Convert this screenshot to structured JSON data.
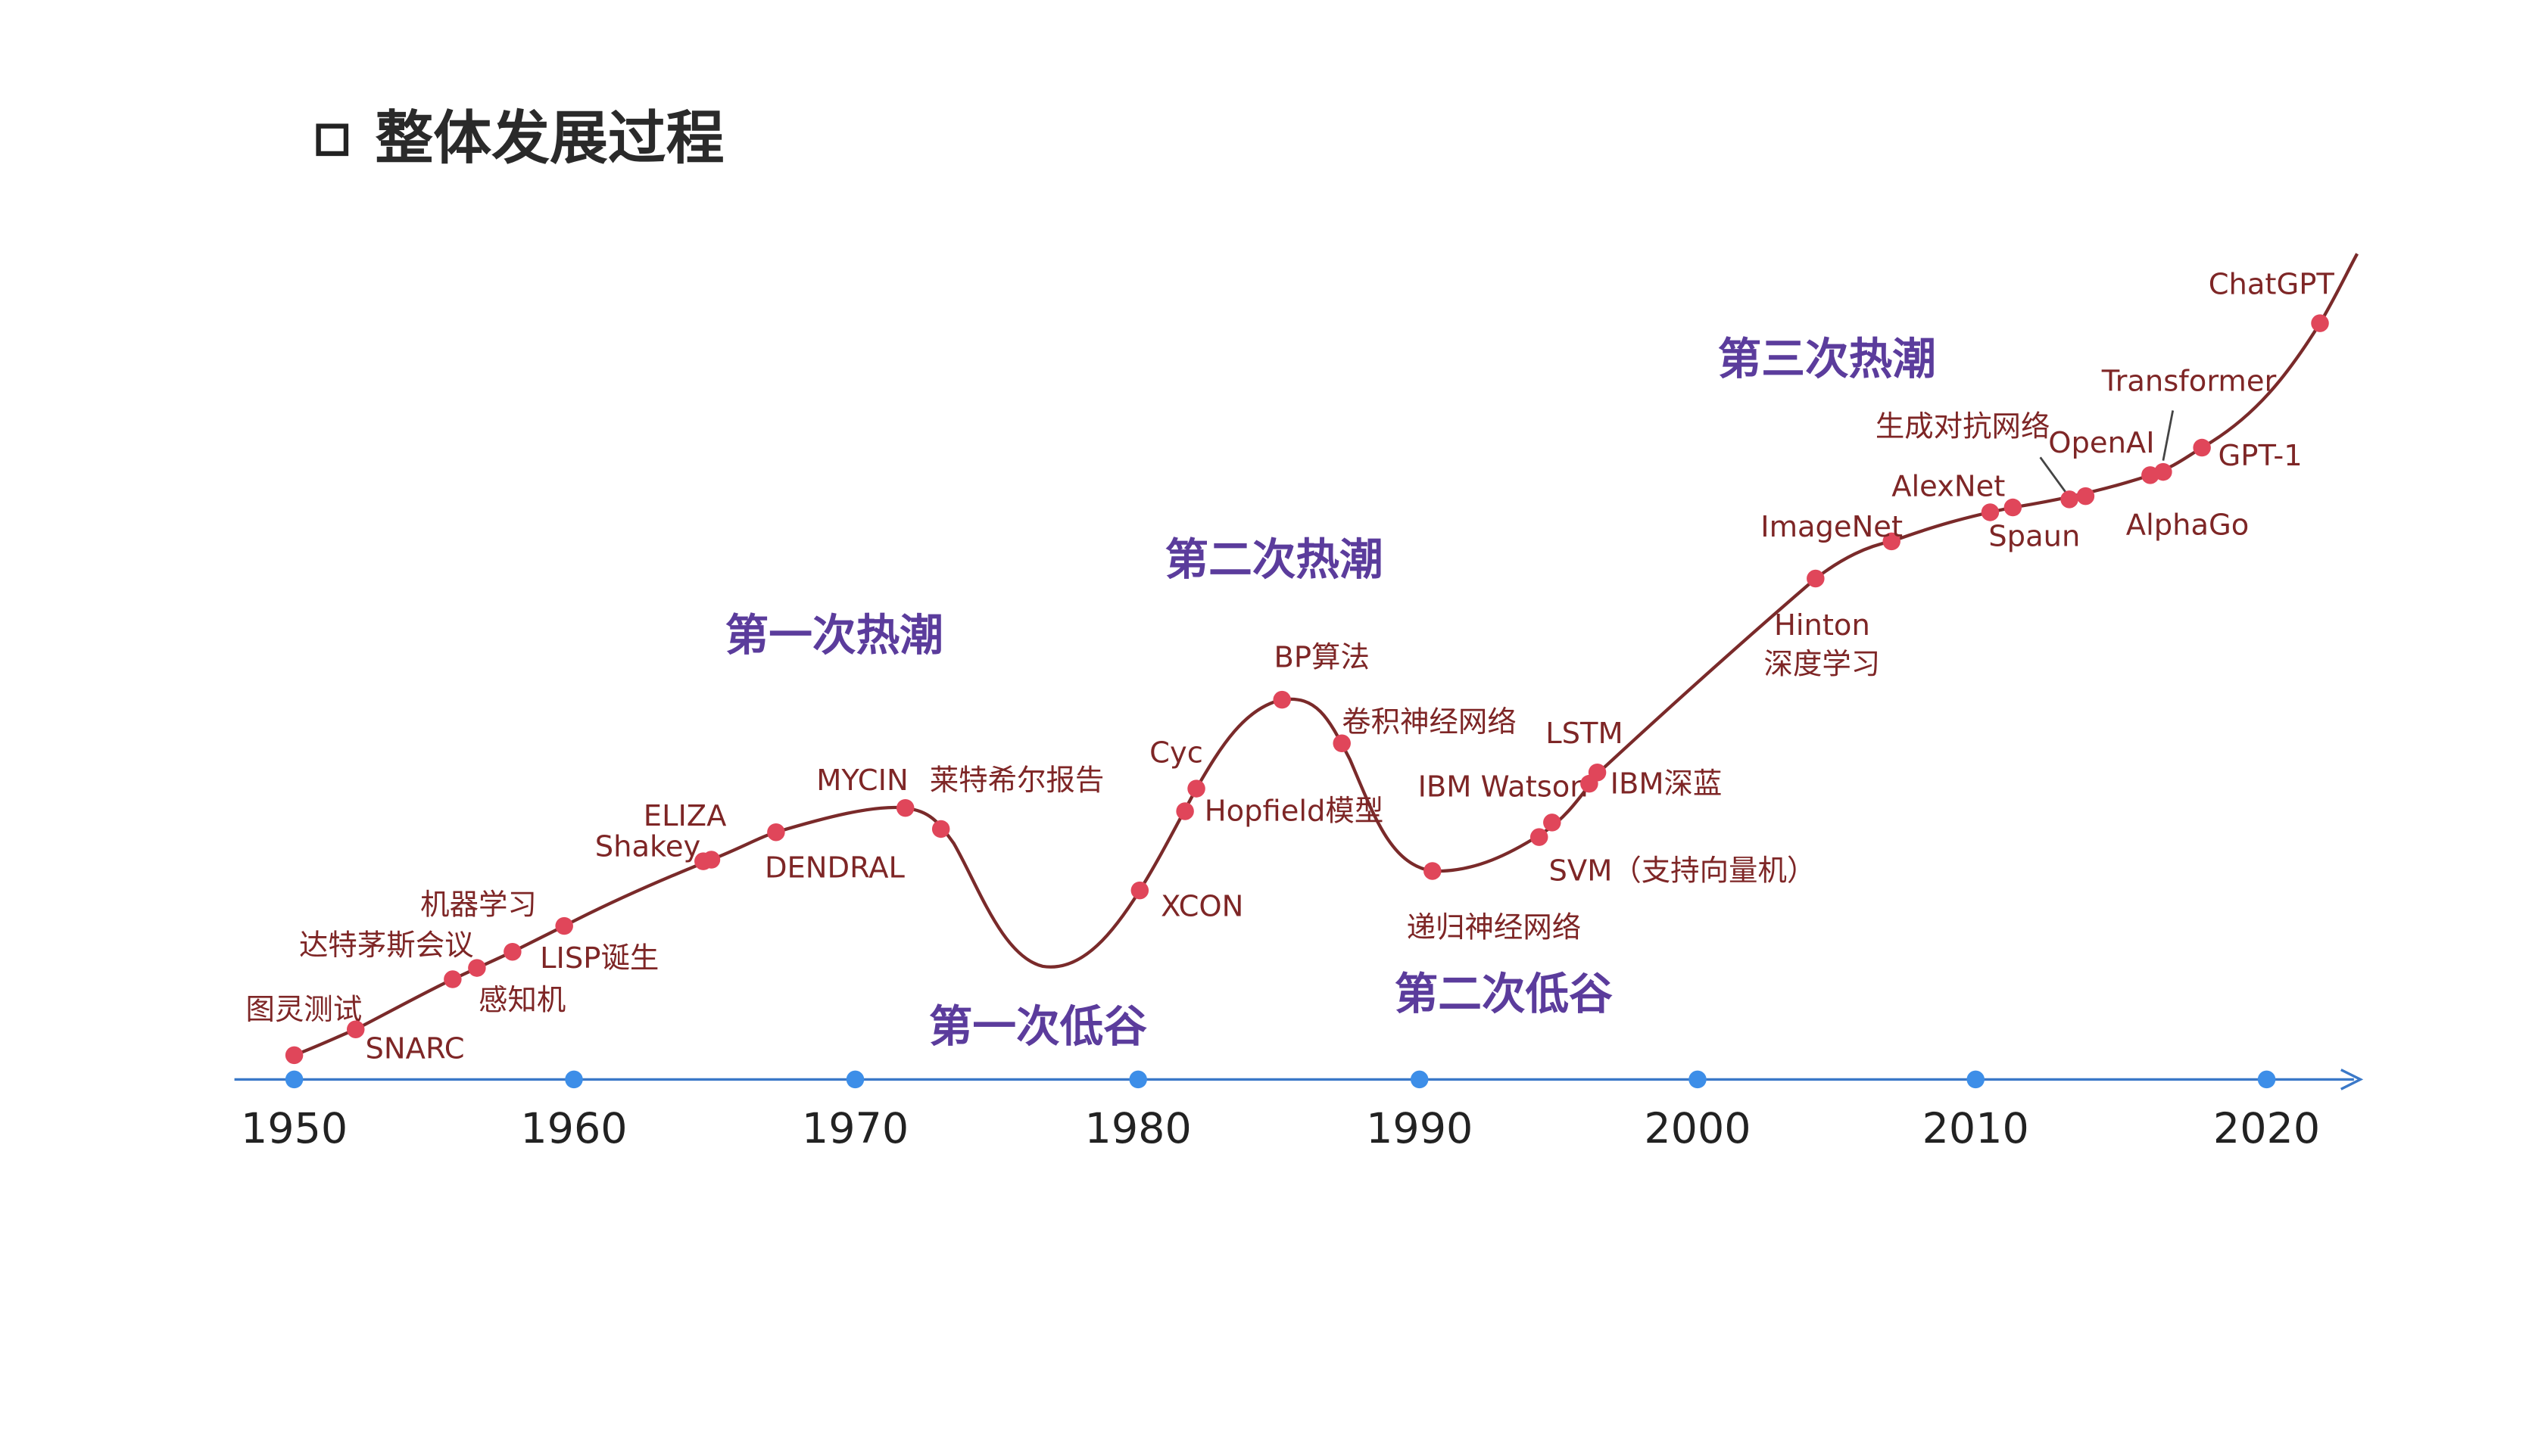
{
  "header": {
    "title": "整体发展过程"
  },
  "timeline": {
    "years": [
      "1950",
      "1960",
      "1970",
      "1980",
      "1990",
      "2000",
      "2010",
      "2020"
    ],
    "events": [
      {
        "label": "图灵测试"
      },
      {
        "label": "SNARC"
      },
      {
        "label": "达特茅斯会议"
      },
      {
        "label": "机器学习"
      },
      {
        "label": "感知机"
      },
      {
        "label": "LISP诞生"
      },
      {
        "label": "ELIZA"
      },
      {
        "label": "Shakey"
      },
      {
        "label": "DENDRAL"
      },
      {
        "label": "MYCIN"
      },
      {
        "label": "莱特希尔报告"
      },
      {
        "label": "XCON"
      },
      {
        "label": "Hopfield模型"
      },
      {
        "label": "Cyc"
      },
      {
        "label": "BP算法"
      },
      {
        "label": "卷积神经网络"
      },
      {
        "label": "递归神经网络"
      },
      {
        "label": "SVM（支持向量机）"
      },
      {
        "label": "IBM Watson"
      },
      {
        "label": "LSTM"
      },
      {
        "label": "IBM深蓝"
      },
      {
        "label": "Hinton",
        "sublabel": "深度学习"
      },
      {
        "label": "ImageNet"
      },
      {
        "label": "AlexNet"
      },
      {
        "label": "Spaun"
      },
      {
        "label": "生成对抗网络"
      },
      {
        "label": "OpenAI"
      },
      {
        "label": "AlphaGo"
      },
      {
        "label": "Transformer"
      },
      {
        "label": "GPT-1"
      },
      {
        "label": "ChatGPT"
      }
    ],
    "phases": [
      "第一次热潮",
      "第一次低谷",
      "第二次热潮",
      "第二次低谷",
      "第三次热潮"
    ]
  }
}
